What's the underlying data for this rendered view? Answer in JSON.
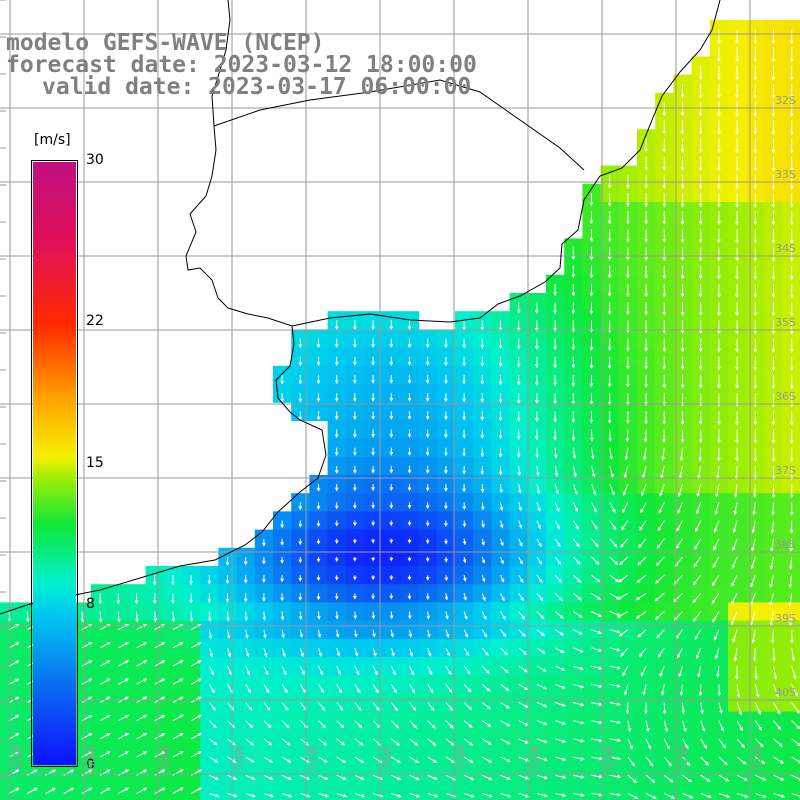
{
  "title": {
    "line1": "modelo GEFS-WAVE (NCEP)",
    "line2": "forecast date: 2023-03-12 18:00:00",
    "line3": "valid date: 2023-03-17 06:00:00"
  },
  "colorbar": {
    "unit": "[m/s]",
    "ticks": [
      {
        "label": "30",
        "value": 30
      },
      {
        "label": "22",
        "value": 22
      },
      {
        "label": "15",
        "value": 15
      },
      {
        "label": "8",
        "value": 8
      },
      {
        "label": "0",
        "value": 0
      }
    ],
    "min": 0,
    "max": 30,
    "colors": [
      "#1010ff",
      "#0a6cf2",
      "#00c8f0",
      "#00f0d0",
      "#10e838",
      "#a8ee00",
      "#f4f000",
      "#ffaa00",
      "#ff2a00",
      "#e0105a",
      "#c01080"
    ]
  },
  "axes": {
    "lon_labels": [
      "61W",
      "60W",
      "59W",
      "58W",
      "57W",
      "56W",
      "55W",
      "54W",
      "53W",
      "52W",
      "51W"
    ],
    "lat_labels": [
      "32S",
      "33S",
      "34S",
      "35S",
      "36S",
      "37S",
      "38S",
      "39S",
      "40S"
    ]
  },
  "map_style": {
    "land_color": "#ffffff",
    "grid_color": "#9a9a9a",
    "coast_color": "#000000",
    "arrow_color": "#ffffff"
  }
}
